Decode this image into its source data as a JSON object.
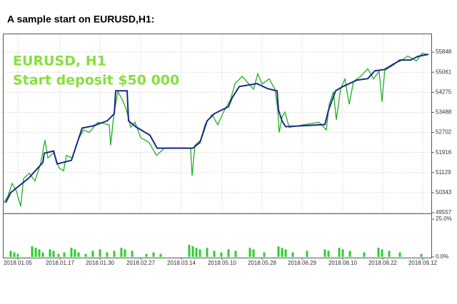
{
  "heading": "A sample start on EURUSD,H1:",
  "chart_data": [
    {
      "type": "line",
      "title": "EURUSD, H1",
      "subtitle": "Start deposit $50 000",
      "xlim": [
        0,
        598
      ],
      "ylim": [
        49557,
        56550
      ],
      "yticks": [
        49557,
        50343,
        51129,
        51916,
        52702,
        53488,
        54275,
        55061,
        55848
      ],
      "xticks": [
        {
          "value": 20,
          "label": "2018.01.05"
        },
        {
          "value": 79,
          "label": "2018.01.17"
        },
        {
          "value": 135,
          "label": "2018.01.30"
        },
        {
          "value": 192,
          "label": "2018.02.27"
        },
        {
          "value": 249,
          "label": "2018.03.14"
        },
        {
          "value": 306,
          "label": "2018.05.10"
        },
        {
          "value": 362,
          "label": "2018.05.28"
        },
        {
          "value": 418,
          "label": "2018.06.29"
        },
        {
          "value": 475,
          "label": "2018.08.10"
        },
        {
          "value": 531,
          "label": "2018.08.22"
        },
        {
          "value": 587,
          "label": "2018.09.12"
        }
      ],
      "grid": true,
      "series": [
        {
          "color": "#22b022",
          "x": [
            0,
            6,
            12,
            18,
            24,
            28,
            36,
            44,
            52,
            58,
            62,
            70,
            78,
            84,
            88,
            96,
            104,
            112,
            120,
            132,
            148,
            150,
            154,
            160,
            166,
            172,
            178,
            184,
            192,
            204,
            214,
            226,
            262,
            264,
            268,
            276,
            282,
            292,
            300,
            308,
            318,
            324,
            334,
            350,
            356,
            362,
            372,
            380,
            384,
            386,
            390,
            394,
            400,
            420,
            442,
            452,
            456,
            462,
            466,
            472,
            478,
            484,
            490,
            500,
            510,
            518,
            526,
            530,
            534,
            546,
            556,
            566,
            578,
            586,
            594
          ],
          "values": [
            49950,
            50200,
            50700,
            50400,
            49800,
            50900,
            51100,
            50800,
            51500,
            52400,
            51700,
            51900,
            51300,
            51200,
            51800,
            51700,
            52400,
            52800,
            52700,
            53100,
            53000,
            52200,
            53300,
            54300,
            54000,
            53600,
            52900,
            53100,
            52500,
            52300,
            51800,
            52100,
            52100,
            51000,
            52200,
            52400,
            53000,
            53400,
            53000,
            53500,
            54000,
            54600,
            54900,
            54400,
            55000,
            54600,
            54800,
            54400,
            53600,
            52700,
            53300,
            53500,
            52900,
            53000,
            53100,
            52800,
            53800,
            54300,
            53200,
            54400,
            54800,
            53800,
            54700,
            54900,
            55200,
            54800,
            55100,
            53900,
            55200,
            55400,
            55500,
            55700,
            55500,
            55800,
            55765
          ]
        },
        {
          "color": "#1a2a8c",
          "x": [
            3,
            10,
            20,
            35,
            55,
            57,
            70,
            75,
            95,
            110,
            125,
            145,
            155,
            157,
            173,
            175,
            185,
            205,
            215,
            225,
            265,
            275,
            285,
            295,
            315,
            320,
            330,
            355,
            370,
            383,
            385,
            390,
            395,
            450,
            455,
            465,
            475,
            495,
            510,
            520,
            535,
            545,
            555,
            570,
            580,
            595
          ],
          "values": [
            49950,
            50344,
            50568,
            50905,
            51523,
            51888,
            51973,
            51467,
            51608,
            52872,
            52956,
            53153,
            53433,
            54332,
            54332,
            53153,
            52928,
            52591,
            52085,
            52085,
            52085,
            52310,
            53153,
            53433,
            53714,
            54051,
            54501,
            54613,
            54417,
            54332,
            53574,
            53153,
            52928,
            53012,
            53574,
            54332,
            54501,
            54754,
            54810,
            55119,
            55175,
            55344,
            55540,
            55540,
            55681,
            55765
          ]
        }
      ]
    },
    {
      "type": "bar",
      "xlim": [
        0,
        598
      ],
      "ylim": [
        0,
        25
      ],
      "color": "#2ecc2e",
      "yticks": [
        {
          "value": 0,
          "label": "0.0%"
        },
        {
          "value": 25,
          "label": "25.0%"
        }
      ],
      "x": [
        10,
        15,
        20,
        40,
        45,
        50,
        55,
        65,
        70,
        77,
        85,
        95,
        100,
        105,
        115,
        125,
        135,
        145,
        155,
        165,
        170,
        180,
        200,
        210,
        220,
        260,
        265,
        270,
        275,
        285,
        295,
        305,
        315,
        325,
        345,
        350,
        365,
        385,
        390,
        395,
        405,
        425,
        450,
        455,
        470,
        475,
        485,
        505,
        525,
        530,
        540,
        555,
        585
      ],
      "values": [
        4,
        3,
        2,
        7,
        6,
        5,
        3,
        5,
        4,
        2,
        3,
        6,
        5,
        3,
        2,
        4,
        5,
        3,
        4,
        6,
        5,
        4,
        2,
        3,
        2,
        8,
        7,
        6,
        5,
        6,
        4,
        3,
        5,
        4,
        6,
        5,
        3,
        7,
        6,
        5,
        3,
        4,
        5,
        4,
        6,
        5,
        4,
        3,
        6,
        5,
        4,
        3,
        2
      ]
    }
  ]
}
